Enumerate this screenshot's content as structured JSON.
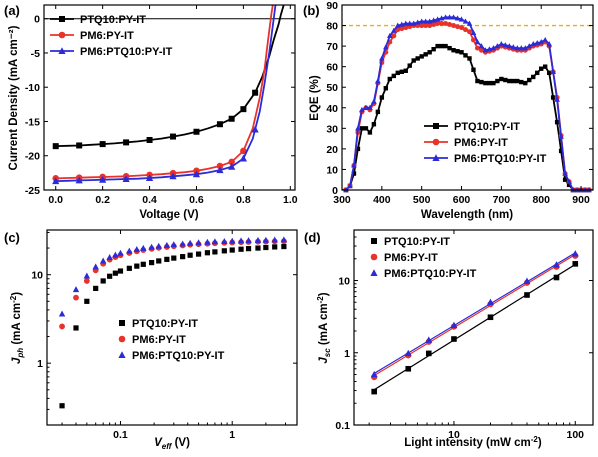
{
  "chart_data": [
    {
      "panel": "(a)",
      "type": "line",
      "xlabel": "Voltage (V)",
      "ylabel": "Current Density (mA cm⁻²)",
      "xlim": [
        -0.05,
        1.02
      ],
      "ylim": [
        -25,
        2
      ],
      "xticks": [
        "0.0",
        "0.2",
        "0.4",
        "0.6",
        "0.8",
        "1.0"
      ],
      "yticks": [
        "0",
        "-5",
        "-10",
        "-15",
        "-20",
        "-25"
      ],
      "xtick_vals": [
        0,
        0.2,
        0.4,
        0.6,
        0.8,
        1.0
      ],
      "ytick_vals": [
        0,
        -5,
        -10,
        -15,
        -20,
        -25
      ],
      "legend_pos": "top-left",
      "series": [
        {
          "name": "PTQ10:PY-IT",
          "color": "#000000",
          "marker": "square",
          "x": [
            0,
            0.05,
            0.1,
            0.15,
            0.2,
            0.25,
            0.3,
            0.35,
            0.4,
            0.45,
            0.5,
            0.55,
            0.6,
            0.65,
            0.7,
            0.75,
            0.8,
            0.85,
            0.88,
            0.91,
            0.93,
            0.95,
            0.96,
            0.97,
            0.98
          ],
          "y": [
            -18.6,
            -18.55,
            -18.5,
            -18.4,
            -18.3,
            -18.2,
            -18.05,
            -17.9,
            -17.7,
            -17.5,
            -17.2,
            -16.9,
            -16.5,
            -16.0,
            -15.4,
            -14.6,
            -13.2,
            -10.8,
            -8.5,
            -5.5,
            -3.0,
            -0.8,
            0.6,
            1.8,
            3.0
          ],
          "marker_x": [
            0,
            0.1,
            0.2,
            0.3,
            0.4,
            0.5,
            0.6,
            0.7,
            0.75,
            0.8,
            0.85
          ]
        },
        {
          "name": "PM6:PY-IT",
          "color": "#e8322a",
          "marker": "circle",
          "x": [
            0,
            0.05,
            0.1,
            0.15,
            0.2,
            0.25,
            0.3,
            0.35,
            0.4,
            0.45,
            0.5,
            0.55,
            0.6,
            0.65,
            0.7,
            0.75,
            0.8,
            0.84,
            0.87,
            0.89,
            0.9,
            0.91,
            0.92,
            0.93
          ],
          "y": [
            -23.3,
            -23.25,
            -23.2,
            -23.15,
            -23.1,
            -23.05,
            -23.0,
            -22.9,
            -22.8,
            -22.7,
            -22.55,
            -22.4,
            -22.2,
            -21.9,
            -21.5,
            -20.9,
            -19.3,
            -16.0,
            -11.5,
            -7.5,
            -4.5,
            -1.8,
            0.8,
            3.0
          ],
          "marker_x": [
            0,
            0.1,
            0.2,
            0.3,
            0.4,
            0.5,
            0.6,
            0.7,
            0.75,
            0.8
          ]
        },
        {
          "name": "PM6:PTQ10:PY-IT",
          "color": "#2b2bd9",
          "marker": "triangle",
          "x": [
            0,
            0.05,
            0.1,
            0.15,
            0.2,
            0.25,
            0.3,
            0.35,
            0.4,
            0.45,
            0.5,
            0.55,
            0.6,
            0.65,
            0.7,
            0.75,
            0.8,
            0.84,
            0.87,
            0.89,
            0.91,
            0.92,
            0.93,
            0.94
          ],
          "y": [
            -23.7,
            -23.65,
            -23.6,
            -23.55,
            -23.5,
            -23.45,
            -23.4,
            -23.35,
            -23.25,
            -23.15,
            -23.0,
            -22.85,
            -22.7,
            -22.45,
            -22.1,
            -21.6,
            -20.4,
            -17.5,
            -13.5,
            -9.5,
            -5.0,
            -2.5,
            0.2,
            2.8
          ],
          "marker_x": [
            0,
            0.1,
            0.2,
            0.3,
            0.4,
            0.5,
            0.6,
            0.7,
            0.75,
            0.8,
            0.85
          ]
        }
      ]
    },
    {
      "panel": "(b)",
      "type": "line",
      "xlabel": "Wavelength (nm)",
      "ylabel": "EQE (%)",
      "xlim": [
        300,
        930
      ],
      "ylim": [
        0,
        90
      ],
      "xticks": [
        "300",
        "400",
        "500",
        "600",
        "700",
        "800",
        "900"
      ],
      "yticks": [
        "0",
        "10",
        "20",
        "30",
        "40",
        "50",
        "60",
        "70",
        "80",
        "90"
      ],
      "xtick_vals": [
        300,
        400,
        500,
        600,
        700,
        800,
        900
      ],
      "ytick_vals": [
        0,
        10,
        20,
        30,
        40,
        50,
        60,
        70,
        80,
        90
      ],
      "reference_line": 80,
      "reference_color": "#e8b400",
      "legend_pos": "bottom-center",
      "series": [
        {
          "name": "PTQ10:PY-IT",
          "color": "#000000",
          "marker": "square",
          "x": [
            300,
            310,
            320,
            330,
            340,
            350,
            360,
            370,
            380,
            390,
            400,
            420,
            440,
            460,
            480,
            500,
            520,
            540,
            560,
            580,
            600,
            620,
            640,
            660,
            680,
            700,
            720,
            740,
            760,
            780,
            800,
            810,
            820,
            840,
            860,
            880,
            900,
            920,
            930
          ],
          "y": [
            0,
            0,
            2,
            8,
            20,
            30,
            30,
            28,
            32,
            38,
            45,
            54,
            57,
            58,
            63,
            65,
            67,
            70,
            70,
            68,
            67,
            64,
            53,
            52,
            52,
            54,
            53,
            53,
            52,
            55,
            59,
            60,
            57,
            33,
            5,
            0,
            0,
            0,
            0
          ]
        },
        {
          "name": "PM6:PY-IT",
          "color": "#e8322a",
          "marker": "circle",
          "x": [
            300,
            310,
            320,
            330,
            340,
            350,
            360,
            370,
            380,
            390,
            400,
            420,
            440,
            460,
            480,
            500,
            520,
            540,
            560,
            580,
            600,
            620,
            640,
            660,
            680,
            700,
            720,
            740,
            760,
            780,
            800,
            810,
            820,
            840,
            860,
            880,
            900,
            920,
            930
          ],
          "y": [
            0,
            0,
            2,
            12,
            28,
            38,
            40,
            39,
            42,
            52,
            62,
            72,
            78,
            79,
            80,
            80,
            80,
            81,
            81,
            80,
            79,
            77,
            69,
            67,
            68,
            70,
            69,
            68,
            68,
            70,
            71,
            72,
            70,
            45,
            8,
            0,
            0,
            0,
            0
          ]
        },
        {
          "name": "PM6:PTQ10:PY-IT",
          "color": "#2b2bd9",
          "marker": "triangle",
          "x": [
            300,
            310,
            320,
            330,
            340,
            350,
            360,
            370,
            380,
            390,
            400,
            420,
            440,
            460,
            480,
            500,
            520,
            540,
            560,
            580,
            600,
            620,
            640,
            660,
            680,
            700,
            720,
            740,
            760,
            780,
            800,
            810,
            820,
            840,
            860,
            880,
            900,
            920,
            930
          ],
          "y": [
            0,
            0,
            2,
            12,
            30,
            39,
            40,
            40,
            43,
            53,
            64,
            75,
            80,
            81,
            81,
            82,
            82,
            83,
            84,
            84,
            83,
            81,
            72,
            68,
            69,
            71,
            70,
            69,
            69,
            71,
            72,
            73,
            71,
            44,
            8,
            0,
            0,
            0,
            0
          ]
        }
      ]
    },
    {
      "panel": "(c)",
      "type": "scatter",
      "xlabel": "V_eff (V)",
      "ylabel": "J_ph (mA cm⁻²)",
      "xscale": "log",
      "yscale": "log",
      "xlim": [
        0.022,
        3.8
      ],
      "ylim": [
        0.2,
        32
      ],
      "xticks": [
        "0.1",
        "1"
      ],
      "yticks": [
        "1",
        "10"
      ],
      "xtick_vals": [
        0.1,
        1
      ],
      "ytick_vals": [
        1,
        10
      ],
      "legend_pos": "bottom-right",
      "series": [
        {
          "name": "PTQ10:PY-IT",
          "color": "#000000",
          "marker": "square",
          "x": [
            0.03,
            0.04,
            0.05,
            0.06,
            0.07,
            0.08,
            0.09,
            0.1,
            0.12,
            0.14,
            0.16,
            0.19,
            0.22,
            0.26,
            0.3,
            0.36,
            0.42,
            0.5,
            0.6,
            0.7,
            0.85,
            1.0,
            1.2,
            1.4,
            1.7,
            2.0,
            2.4,
            2.9
          ],
          "y": [
            0.33,
            2.5,
            5.0,
            7.0,
            8.5,
            9.6,
            10.4,
            11.0,
            11.8,
            12.5,
            13.1,
            13.7,
            14.3,
            14.9,
            15.4,
            16.0,
            16.6,
            17.1,
            17.7,
            18.1,
            18.6,
            19.0,
            19.4,
            19.7,
            20.0,
            20.3,
            20.6,
            20.8
          ]
        },
        {
          "name": "PM6:PY-IT",
          "color": "#e8322a",
          "marker": "circle",
          "x": [
            0.03,
            0.04,
            0.05,
            0.06,
            0.07,
            0.08,
            0.09,
            0.1,
            0.12,
            0.14,
            0.16,
            0.19,
            0.22,
            0.26,
            0.3,
            0.36,
            0.42,
            0.5,
            0.6,
            0.7,
            0.85,
            1.0,
            1.2,
            1.4,
            1.7,
            2.0,
            2.4,
            2.9
          ],
          "y": [
            2.6,
            5.5,
            8.5,
            11.2,
            13.3,
            14.8,
            15.8,
            16.6,
            17.6,
            18.4,
            19.0,
            19.6,
            20.1,
            20.6,
            21.0,
            21.4,
            21.8,
            22.1,
            22.4,
            22.7,
            22.9,
            23.1,
            23.3,
            23.4,
            23.6,
            23.7,
            23.8,
            23.9
          ]
        },
        {
          "name": "PM6:PTQ10:PY-IT",
          "color": "#2b2bd9",
          "marker": "triangle",
          "x": [
            0.03,
            0.04,
            0.05,
            0.06,
            0.07,
            0.08,
            0.09,
            0.1,
            0.12,
            0.14,
            0.16,
            0.19,
            0.22,
            0.26,
            0.3,
            0.36,
            0.42,
            0.5,
            0.6,
            0.7,
            0.85,
            1.0,
            1.2,
            1.4,
            1.7,
            2.0,
            2.4,
            2.9
          ],
          "y": [
            3.6,
            6.8,
            9.7,
            12.3,
            14.3,
            15.7,
            16.7,
            17.5,
            18.5,
            19.3,
            19.9,
            20.5,
            21.0,
            21.5,
            21.9,
            22.3,
            22.7,
            23.0,
            23.3,
            23.6,
            23.8,
            24.0,
            24.2,
            24.3,
            24.5,
            24.6,
            24.7,
            24.8
          ]
        }
      ]
    },
    {
      "panel": "(d)",
      "type": "scatter",
      "xlabel": "Light intensity (mW cm⁻²)",
      "ylabel": "J_sc (mA cm⁻²)",
      "xscale": "log",
      "yscale": "log",
      "xlim": [
        1.5,
        140
      ],
      "ylim": [
        0.1,
        50
      ],
      "xticks": [
        "10",
        "100"
      ],
      "yticks": [
        "0.1",
        "1",
        "10"
      ],
      "xtick_vals": [
        10,
        100
      ],
      "ytick_vals": [
        0.1,
        1,
        10
      ],
      "legend_pos": "top-left",
      "series": [
        {
          "name": "PTQ10:PY-IT",
          "color": "#000000",
          "marker": "square",
          "x": [
            2.2,
            4.2,
            6.2,
            10,
            20,
            40,
            70,
            100
          ],
          "y": [
            0.29,
            0.6,
            0.98,
            1.55,
            3.1,
            6.3,
            11.0,
            17.0
          ]
        },
        {
          "name": "PM6:PY-IT",
          "color": "#e8322a",
          "marker": "circle",
          "x": [
            2.2,
            4.2,
            6.2,
            10,
            20,
            40,
            70,
            100
          ],
          "y": [
            0.46,
            0.92,
            1.42,
            2.3,
            4.7,
            9.3,
            15.5,
            22.0
          ]
        },
        {
          "name": "PM6:PTQ10:PY-IT",
          "color": "#2b2bd9",
          "marker": "triangle",
          "x": [
            2.2,
            4.2,
            6.2,
            10,
            20,
            40,
            70,
            100
          ],
          "y": [
            0.5,
            0.98,
            1.5,
            2.4,
            5.0,
            9.8,
            16.5,
            23.5
          ]
        }
      ]
    }
  ]
}
